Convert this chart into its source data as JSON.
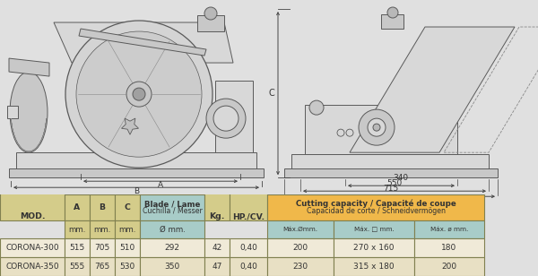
{
  "bg_color": "#e0e0e0",
  "table_header_bg_yellow": "#d4cc8a",
  "table_header_bg_teal": "#a8ccc8",
  "table_header_bg_orange": "#f0b84a",
  "table_row1_bg": "#f0ead8",
  "table_row2_bg": "#e8e0c4",
  "table_border_color": "#808050",
  "rows": [
    [
      "CORONA-300",
      "515",
      "705",
      "510",
      "292",
      "42",
      "0,40",
      "200",
      "270 x 160",
      "180"
    ],
    [
      "CORONA-350",
      "555",
      "765",
      "530",
      "350",
      "47",
      "0,40",
      "230",
      "315 x 180",
      "200"
    ]
  ]
}
